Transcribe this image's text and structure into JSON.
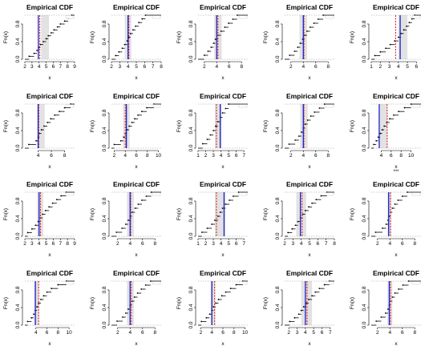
{
  "layout_hint": "grid-4x5",
  "chart_data": [
    {
      "type": "step",
      "title": "Empirical CDF",
      "xlabel": "x",
      "ylabel": "Fn(x)",
      "xticks": [
        2,
        3,
        4,
        5,
        6,
        7,
        8,
        9
      ],
      "xlim": [
        2,
        9
      ],
      "yticks": [
        0.0,
        0.4,
        0.8
      ],
      "ylim": [
        0,
        1
      ],
      "x": [
        2.6,
        3.3,
        3.7,
        4.0,
        4.2,
        4.6,
        5.0,
        5.3,
        5.7,
        6.1,
        6.6,
        7.0,
        7.6,
        8.1,
        8.6
      ],
      "blue_line": 3.9,
      "red_line": 4.1,
      "shade": [
        4.3,
        5.4
      ],
      "stars": ""
    },
    {
      "type": "step",
      "title": "Empirical CDF",
      "xlabel": "x",
      "ylabel": "Fn(x)",
      "xticks": [
        2,
        3,
        4,
        5,
        6,
        7,
        8
      ],
      "xlim": [
        2,
        8
      ],
      "yticks": [
        0.0,
        0.4,
        0.8
      ],
      "ylim": [
        0,
        1
      ],
      "x": [
        2.5,
        2.9,
        3.3,
        3.6,
        3.9,
        4.1,
        4.3,
        4.6,
        4.9,
        5.3,
        5.7,
        6.1
      ],
      "blue_line": 4.0,
      "red_line": 4.1,
      "shade": [
        3.6,
        4.4
      ],
      "stars": ""
    },
    {
      "type": "step",
      "title": "Empirical CDF",
      "xlabel": "x",
      "ylabel": "Fn(x)",
      "xticks": [
        2,
        4,
        6,
        8
      ],
      "xlim": [
        1,
        9
      ],
      "yticks": [
        0.0,
        0.4,
        0.8
      ],
      "ylim": [
        0,
        1
      ],
      "x": [
        2.0,
        2.6,
        3.1,
        3.5,
        3.8,
        4.2,
        4.7,
        5.3,
        5.9,
        6.6,
        7.3
      ],
      "blue_line": 4.0,
      "red_line": 4.2,
      "shade": [
        3.6,
        4.8
      ],
      "stars": ""
    },
    {
      "type": "step",
      "title": "Empirical CDF",
      "xlabel": "x",
      "ylabel": "Fn(x)",
      "xticks": [
        2,
        4,
        6,
        8
      ],
      "xlim": [
        1,
        9
      ],
      "yticks": [
        0.0,
        0.4,
        0.8
      ],
      "ylim": [
        0,
        1
      ],
      "x": [
        1.8,
        2.6,
        3.1,
        3.5,
        3.9,
        4.2,
        4.6,
        5.1,
        5.7,
        6.4,
        7.2
      ],
      "blue_line": 4.0,
      "red_line": 4.1,
      "shade": [
        3.4,
        4.6
      ],
      "stars": ""
    },
    {
      "type": "step",
      "title": "Empirical CDF",
      "xlabel": "x",
      "ylabel": "Fn(x)",
      "xticks": [
        1,
        2,
        3,
        4,
        5,
        6
      ],
      "xlim": [
        1,
        6.5
      ],
      "yticks": [
        0.0,
        0.4,
        0.8
      ],
      "ylim": [
        0,
        1
      ],
      "x": [
        1.4,
        2.0,
        2.6,
        3.1,
        3.6,
        4.0,
        4.3,
        4.6,
        4.9,
        5.2,
        5.5,
        5.8
      ],
      "blue_line": 4.2,
      "red_line": 3.7,
      "shade": [
        4.0,
        5.0
      ],
      "stars": ""
    },
    {
      "type": "step",
      "title": "Empirical CDF",
      "xlabel": "x",
      "ylabel": "Fn(x)",
      "xticks": [
        4,
        6,
        8
      ],
      "xlim": [
        2,
        9.5
      ],
      "yticks": [
        0.0,
        0.4,
        0.8
      ],
      "ylim": [
        0,
        1
      ],
      "x": [
        2.6,
        3.7,
        4.0,
        4.2,
        4.5,
        4.9,
        5.4,
        5.9,
        6.5,
        7.2,
        8.0,
        8.9
      ],
      "blue_line": 4.0,
      "red_line": 4.1,
      "shade": [
        3.9,
        5.0
      ],
      "stars": ""
    },
    {
      "type": "step",
      "title": "Empirical CDF",
      "xlabel": "x",
      "ylabel": "Fn(x)",
      "xticks": [
        2,
        4,
        6,
        8,
        10
      ],
      "xlim": [
        1.5,
        10.5
      ],
      "yticks": [
        0.0,
        0.4,
        0.8
      ],
      "ylim": [
        0,
        1
      ],
      "x": [
        2.0,
        3.2,
        3.7,
        4.0,
        4.3,
        4.7,
        5.2,
        5.7,
        6.3,
        7.0,
        7.9,
        9.2
      ],
      "blue_line": 4.2,
      "red_line": 4.0,
      "shade": [
        3.6,
        4.8
      ],
      "stars": ""
    },
    {
      "type": "step",
      "title": "Empirical CDF",
      "xlabel": "x",
      "ylabel": "Fn(x)",
      "xticks": [
        1,
        2,
        3,
        4,
        5,
        6,
        7
      ],
      "xlim": [
        1,
        7.5
      ],
      "yticks": [
        0.0,
        0.4,
        0.8
      ],
      "ylim": [
        0,
        1
      ],
      "x": [
        1.6,
        2.2,
        2.6,
        3.0,
        3.3,
        3.6,
        3.9,
        4.2,
        4.6,
        5.0
      ],
      "blue_line": 3.9,
      "red_line": 3.4,
      "shade": [
        3.2,
        4.1
      ],
      "stars": ""
    },
    {
      "type": "step",
      "title": "Empirical CDF",
      "xlabel": "x",
      "ylabel": "Fn(x)",
      "xticks": [
        2,
        4,
        6,
        8
      ],
      "xlim": [
        1,
        9
      ],
      "yticks": [
        0.0,
        0.4,
        0.8
      ],
      "ylim": [
        0,
        1
      ],
      "x": [
        1.7,
        2.7,
        3.3,
        3.7,
        4.0,
        4.3,
        4.7,
        5.2,
        5.8,
        6.6,
        7.4
      ],
      "blue_line": 4.0,
      "red_line": 4.1,
      "shade": [
        3.5,
        4.7
      ],
      "stars": ""
    },
    {
      "type": "step",
      "title": "Empirical CDF",
      "xlabel": "x",
      "ylabel": "Fn(x)",
      "xticks": [
        4,
        6,
        8,
        10
      ],
      "xlim": [
        2,
        12
      ],
      "yticks": [
        0.0,
        0.4,
        0.8
      ],
      "ylim": [
        0,
        1
      ],
      "x": [
        2.5,
        3.0,
        3.4,
        3.8,
        4.2,
        4.6,
        5.1,
        5.7,
        6.5,
        7.5,
        8.7,
        10.0
      ],
      "blue_line": 3.6,
      "red_line": 5.2,
      "shade": [
        3.6,
        5.2
      ],
      "stars": "***"
    },
    {
      "type": "step",
      "title": "Empirical CDF",
      "xlabel": "x",
      "ylabel": "Fn(x)",
      "xticks": [
        2,
        3,
        4,
        5,
        6,
        7,
        8,
        9
      ],
      "xlim": [
        2,
        9
      ],
      "yticks": [
        0.0,
        0.4,
        0.8
      ],
      "ylim": [
        0,
        1
      ],
      "x": [
        2.4,
        3.0,
        3.5,
        3.9,
        4.2,
        4.5,
        4.9,
        5.4,
        5.9,
        6.5,
        7.1,
        7.8
      ],
      "blue_line": 4.0,
      "red_line": 4.2,
      "shade": [
        3.7,
        4.6
      ],
      "stars": ""
    },
    {
      "type": "step",
      "title": "Empirical CDF",
      "xlabel": "x",
      "ylabel": "Fn(x)",
      "xticks": [
        2,
        4,
        6,
        8
      ],
      "xlim": [
        1,
        9
      ],
      "yticks": [
        0.0,
        0.4,
        0.8
      ],
      "ylim": [
        0,
        1
      ],
      "x": [
        1.8,
        2.7,
        3.3,
        3.7,
        4.0,
        4.3,
        4.8,
        5.3,
        5.9,
        6.6,
        7.4
      ],
      "blue_line": 4.0,
      "red_line": 4.1,
      "shade": [
        3.5,
        4.6
      ],
      "stars": ""
    },
    {
      "type": "step",
      "title": "Empirical CDF",
      "xlabel": "x",
      "ylabel": "Fn(x)",
      "xticks": [
        1,
        2,
        3,
        4,
        5,
        6,
        7
      ],
      "xlim": [
        1,
        7.5
      ],
      "yticks": [
        0.0,
        0.4,
        0.8
      ],
      "ylim": [
        0,
        1
      ],
      "x": [
        1.5,
        2.2,
        2.8,
        3.2,
        3.6,
        3.9,
        4.2,
        4.6,
        5.1,
        5.6,
        6.3
      ],
      "blue_line": 4.4,
      "red_line": 3.4,
      "shade": [
        3.2,
        4.6
      ],
      "stars": ""
    },
    {
      "type": "step",
      "title": "Empirical CDF",
      "xlabel": "x",
      "ylabel": "Fn(x)",
      "xticks": [
        2,
        3,
        4,
        5,
        6,
        7,
        8
      ],
      "xlim": [
        2,
        8
      ],
      "yticks": [
        0.0,
        0.4,
        0.8
      ],
      "ylim": [
        0,
        1
      ],
      "x": [
        2.4,
        2.9,
        3.3,
        3.6,
        3.9,
        4.2,
        4.5,
        4.9,
        5.3,
        5.8,
        6.4,
        7.1
      ],
      "blue_line": 3.9,
      "red_line": 4.1,
      "shade": [
        3.4,
        4.6
      ],
      "stars": ""
    },
    {
      "type": "step",
      "title": "Empirical CDF",
      "xlabel": "x",
      "ylabel": "Fn(x)",
      "xticks": [
        2,
        4,
        6,
        8
      ],
      "xlim": [
        1,
        9
      ],
      "yticks": [
        0.0,
        0.4,
        0.8
      ],
      "ylim": [
        0,
        1
      ],
      "x": [
        1.7,
        2.8,
        3.4,
        3.7,
        3.9,
        4.1,
        4.4,
        4.8,
        5.3,
        6.0,
        6.8
      ],
      "blue_line": 3.8,
      "red_line": 4.1,
      "shade": [
        3.6,
        4.2
      ],
      "stars": ""
    },
    {
      "type": "step",
      "title": "Empirical CDF",
      "xlabel": "x",
      "ylabel": "Fn(x)",
      "xticks": [
        4,
        6,
        8,
        10
      ],
      "xlim": [
        2,
        11
      ],
      "yticks": [
        0.0,
        0.4,
        0.8
      ],
      "ylim": [
        0,
        1
      ],
      "x": [
        2.5,
        3.2,
        3.6,
        3.9,
        4.2,
        4.5,
        4.9,
        5.4,
        6.0,
        6.8,
        8.0,
        9.5
      ],
      "blue_line": 3.9,
      "red_line": 4.5,
      "shade": [
        3.7,
        4.5
      ],
      "stars": ""
    },
    {
      "type": "step",
      "title": "Empirical CDF",
      "xlabel": "x",
      "ylabel": "Fn(x)",
      "xticks": [
        2,
        4,
        6,
        8
      ],
      "xlim": [
        1,
        9
      ],
      "yticks": [
        0.0,
        0.4,
        0.8
      ],
      "ylim": [
        0,
        1
      ],
      "x": [
        1.9,
        2.8,
        3.3,
        3.7,
        4.0,
        4.3,
        4.7,
        5.2,
        5.8,
        6.5,
        7.3
      ],
      "blue_line": 4.0,
      "red_line": 4.2,
      "shade": [
        3.5,
        4.6
      ],
      "stars": ""
    },
    {
      "type": "step",
      "title": "Empirical CDF",
      "xlabel": "x",
      "ylabel": "Fn(x)",
      "xticks": [
        2,
        4,
        6,
        8,
        10
      ],
      "xlim": [
        1.5,
        10.5
      ],
      "yticks": [
        0.0,
        0.4,
        0.8
      ],
      "ylim": [
        0,
        1
      ],
      "x": [
        2.1,
        3.0,
        3.6,
        4.0,
        4.3,
        4.7,
        5.2,
        5.8,
        6.5,
        7.4,
        8.4,
        9.6
      ],
      "blue_line": 4.0,
      "red_line": 4.5,
      "shade": [
        3.8,
        4.6
      ],
      "stars": ""
    },
    {
      "type": "step",
      "title": "Empirical CDF",
      "xlabel": "x",
      "ylabel": "Fn(x)",
      "xticks": [
        2,
        3,
        4,
        5,
        6,
        7
      ],
      "xlim": [
        1.5,
        7.5
      ],
      "yticks": [
        0.0,
        0.4,
        0.8
      ],
      "ylim": [
        0,
        1
      ],
      "x": [
        2.1,
        2.7,
        3.2,
        3.5,
        3.8,
        4.1,
        4.4,
        4.8,
        5.2,
        5.7,
        6.3,
        6.9
      ],
      "blue_line": 4.0,
      "red_line": 4.2,
      "shade": [
        3.5,
        4.8
      ],
      "stars": ""
    },
    {
      "type": "step",
      "title": "Empirical CDF",
      "xlabel": "x",
      "ylabel": "Fn(x)",
      "xticks": [
        2,
        4,
        6,
        8
      ],
      "xlim": [
        1,
        9
      ],
      "yticks": [
        0.0,
        0.4,
        0.8
      ],
      "ylim": [
        0,
        1
      ],
      "x": [
        1.8,
        2.6,
        3.3,
        3.7,
        3.9,
        4.1,
        4.4,
        4.8,
        5.4,
        6.1,
        7.0
      ],
      "blue_line": 3.9,
      "red_line": 4.1,
      "shade": [
        3.6,
        4.4
      ],
      "stars": ""
    }
  ]
}
